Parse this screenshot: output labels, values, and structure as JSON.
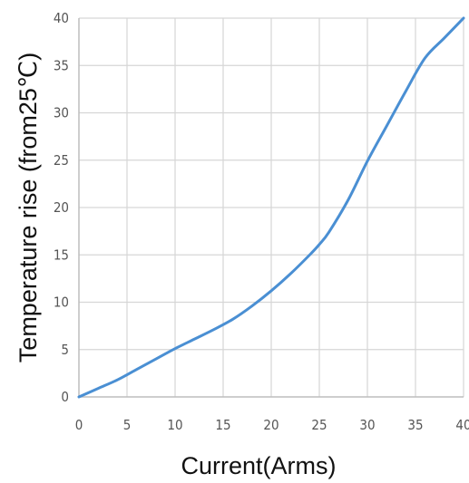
{
  "chart_data": {
    "type": "line",
    "title": "",
    "xlabel": "Current(Arms)",
    "ylabel": "Temperature rise (from25℃)",
    "xlim": [
      0,
      40
    ],
    "ylim": [
      0,
      40
    ],
    "xticks": [
      0,
      5,
      10,
      15,
      20,
      25,
      30,
      35,
      40
    ],
    "yticks": [
      0,
      5,
      10,
      15,
      20,
      25,
      30,
      35,
      40
    ],
    "grid": true,
    "legend": "none",
    "colors": {
      "line": "#4a8fd3",
      "grid": "#d6d6d6",
      "axis": "#bdbdbd"
    },
    "series": [
      {
        "x": [
          0,
          2,
          4,
          6,
          8,
          10,
          12,
          14,
          16,
          18,
          20,
          22,
          24,
          25,
          26,
          28,
          30,
          32,
          34,
          36,
          38,
          40
        ],
        "y": [
          0,
          0.9,
          1.8,
          2.9,
          4.0,
          5.1,
          6.1,
          7.1,
          8.2,
          9.6,
          11.2,
          13.0,
          15.0,
          16.1,
          17.4,
          20.8,
          24.9,
          28.6,
          32.3,
          35.8,
          37.9,
          40.0
        ]
      }
    ]
  }
}
